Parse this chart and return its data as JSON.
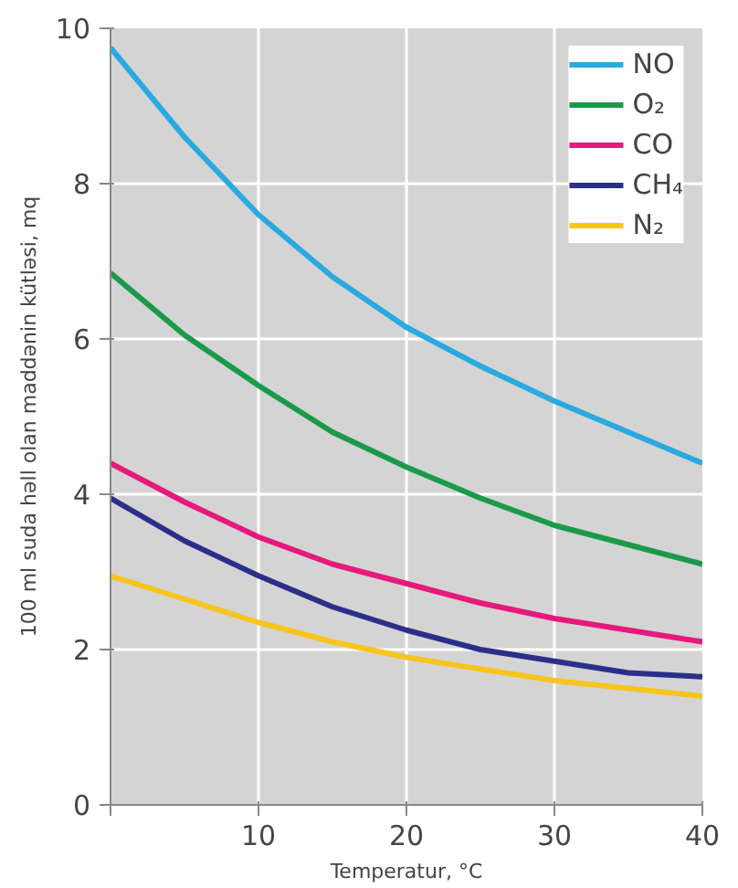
{
  "chart_data": {
    "type": "line",
    "xlabel": "Temperatur, °C",
    "ylabel": "100 ml suda həll olan maddənin kütləsi, mq",
    "x": [
      0,
      5,
      10,
      15,
      20,
      25,
      30,
      35,
      40
    ],
    "series": [
      {
        "name": "NO",
        "color": "#29aae1",
        "values": [
          9.75,
          8.6,
          7.6,
          6.8,
          6.15,
          5.65,
          5.2,
          4.8,
          4.4
        ]
      },
      {
        "name": "O₂",
        "color": "#1a9a4a",
        "values": [
          6.85,
          6.05,
          5.4,
          4.8,
          4.35,
          3.95,
          3.6,
          3.35,
          3.1
        ]
      },
      {
        "name": "CO",
        "color": "#e6197d",
        "values": [
          4.4,
          3.9,
          3.45,
          3.1,
          2.85,
          2.6,
          2.4,
          2.25,
          2.1
        ]
      },
      {
        "name": "CH₄",
        "color": "#2b2f8a",
        "values": [
          3.95,
          3.4,
          2.95,
          2.55,
          2.25,
          2.0,
          1.85,
          1.7,
          1.65
        ]
      },
      {
        "name": "N₂",
        "color": "#f7c51e",
        "values": [
          2.95,
          2.65,
          2.35,
          2.1,
          1.9,
          1.75,
          1.6,
          1.5,
          1.4
        ]
      }
    ],
    "xlim": [
      0,
      40
    ],
    "ylim": [
      0,
      10
    ],
    "xticks": [
      {
        "value": 0,
        "label": null
      },
      10,
      20,
      30,
      40
    ],
    "yticks": [
      0,
      2,
      4,
      6,
      8,
      10
    ],
    "grid": true,
    "legend": "top right",
    "marker": "none",
    "line_style": "solid"
  }
}
